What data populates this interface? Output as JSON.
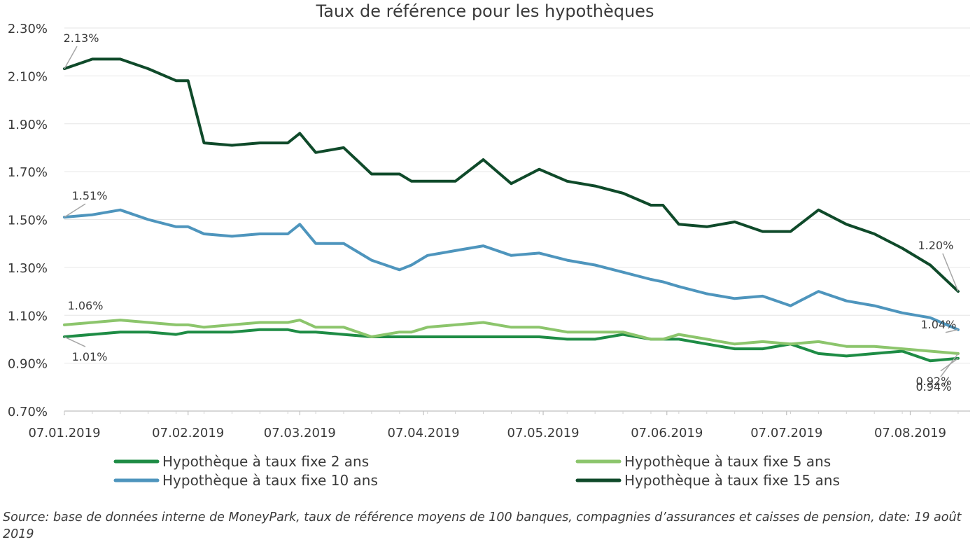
{
  "chart_data": {
    "type": "line",
    "title": "Taux de référence pour les hypothèques",
    "xlabel": "",
    "ylabel": "",
    "ylim": [
      0.7,
      2.3
    ],
    "yticks": [
      0.7,
      0.9,
      1.1,
      1.3,
      1.5,
      1.7,
      1.9,
      2.1,
      2.3
    ],
    "ytick_labels": [
      "0.70%",
      "0.90%",
      "1.10%",
      "1.30%",
      "1.50%",
      "1.70%",
      "1.90%",
      "2.10%",
      "2.30%"
    ],
    "xlim": [
      "2019-01-07",
      "2019-08-22"
    ],
    "xticks": [
      "2019-01-07",
      "2019-02-07",
      "2019-03-07",
      "2019-04-07",
      "2019-05-07",
      "2019-06-07",
      "2019-07-07",
      "2019-08-07"
    ],
    "xtick_labels": [
      "07.01.2019",
      "07.02.2019",
      "07.03.2019",
      "07.04.2019",
      "07.05.2019",
      "07.06.2019",
      "07.07.2019",
      "07.08.2019"
    ],
    "grid": true,
    "legend_position": "bottom",
    "x": [
      "2019-01-07",
      "2019-01-14",
      "2019-01-21",
      "2019-01-28",
      "2019-02-04",
      "2019-02-07",
      "2019-02-11",
      "2019-02-18",
      "2019-02-25",
      "2019-03-04",
      "2019-03-07",
      "2019-03-11",
      "2019-03-18",
      "2019-03-25",
      "2019-04-01",
      "2019-04-04",
      "2019-04-08",
      "2019-04-15",
      "2019-04-22",
      "2019-04-29",
      "2019-05-06",
      "2019-05-13",
      "2019-05-20",
      "2019-05-27",
      "2019-06-03",
      "2019-06-06",
      "2019-06-10",
      "2019-06-17",
      "2019-06-24",
      "2019-07-01",
      "2019-07-08",
      "2019-07-15",
      "2019-07-22",
      "2019-07-29",
      "2019-08-05",
      "2019-08-12",
      "2019-08-19"
    ],
    "series": [
      {
        "name": "Hypothèque à taux fixe 2 ans",
        "color": "#1e8c45",
        "values": [
          1.01,
          1.02,
          1.03,
          1.03,
          1.02,
          1.03,
          1.03,
          1.03,
          1.04,
          1.04,
          1.03,
          1.03,
          1.02,
          1.01,
          1.01,
          1.01,
          1.01,
          1.01,
          1.01,
          1.01,
          1.01,
          1.0,
          1.0,
          1.02,
          1.0,
          1.0,
          1.0,
          0.98,
          0.96,
          0.96,
          0.98,
          0.94,
          0.93,
          0.94,
          0.95,
          0.91,
          0.92
        ]
      },
      {
        "name": "Hypothèque à taux fixe 5 ans",
        "color": "#8cc56c",
        "values": [
          1.06,
          1.07,
          1.08,
          1.07,
          1.06,
          1.06,
          1.05,
          1.06,
          1.07,
          1.07,
          1.08,
          1.05,
          1.05,
          1.01,
          1.03,
          1.03,
          1.05,
          1.06,
          1.07,
          1.05,
          1.05,
          1.03,
          1.03,
          1.03,
          1.0,
          1.0,
          1.02,
          1.0,
          0.98,
          0.99,
          0.98,
          0.99,
          0.97,
          0.97,
          0.96,
          0.95,
          0.94
        ]
      },
      {
        "name": "Hypothèque à taux fixe 10 ans",
        "color": "#4e95bd",
        "values": [
          1.51,
          1.52,
          1.54,
          1.5,
          1.47,
          1.47,
          1.44,
          1.43,
          1.44,
          1.44,
          1.48,
          1.4,
          1.4,
          1.33,
          1.29,
          1.31,
          1.35,
          1.37,
          1.39,
          1.35,
          1.36,
          1.33,
          1.31,
          1.28,
          1.25,
          1.24,
          1.22,
          1.19,
          1.17,
          1.18,
          1.14,
          1.2,
          1.16,
          1.14,
          1.11,
          1.09,
          1.04
        ]
      },
      {
        "name": "Hypothèque à taux fixe 15 ans",
        "color": "#0f4a2a",
        "values": [
          2.13,
          2.17,
          2.17,
          2.13,
          2.08,
          2.08,
          1.82,
          1.81,
          1.82,
          1.82,
          1.86,
          1.78,
          1.8,
          1.69,
          1.69,
          1.66,
          1.66,
          1.66,
          1.75,
          1.65,
          1.71,
          1.66,
          1.64,
          1.61,
          1.56,
          1.56,
          1.48,
          1.47,
          1.49,
          1.45,
          1.45,
          1.54,
          1.48,
          1.44,
          1.38,
          1.31,
          1.2
        ]
      }
    ],
    "annotations": [
      {
        "text": "2.13%",
        "series": "Hypothèque à taux fixe 15 ans",
        "at": "start"
      },
      {
        "text": "1.51%",
        "series": "Hypothèque à taux fixe 10 ans",
        "at": "start"
      },
      {
        "text": "1.06%",
        "series": "Hypothèque à taux fixe 5 ans",
        "at": "start"
      },
      {
        "text": "1.01%",
        "series": "Hypothèque à taux fixe 2 ans",
        "at": "start"
      },
      {
        "text": "1.20%",
        "series": "Hypothèque à taux fixe 15 ans",
        "at": "end"
      },
      {
        "text": "1.04%",
        "series": "Hypothèque à taux fixe 10 ans",
        "at": "end"
      },
      {
        "text": "0.94%",
        "series": "Hypothèque à taux fixe 5 ans",
        "at": "end"
      },
      {
        "text": "0.92%",
        "series": "Hypothèque à taux fixe 2 ans",
        "at": "end"
      }
    ]
  },
  "source_note": "Source: base de données interne de MoneyPark, taux de référence moyens de 100 banques, compagnies d’assurances et caisses de pension, date: 19 août 2019"
}
